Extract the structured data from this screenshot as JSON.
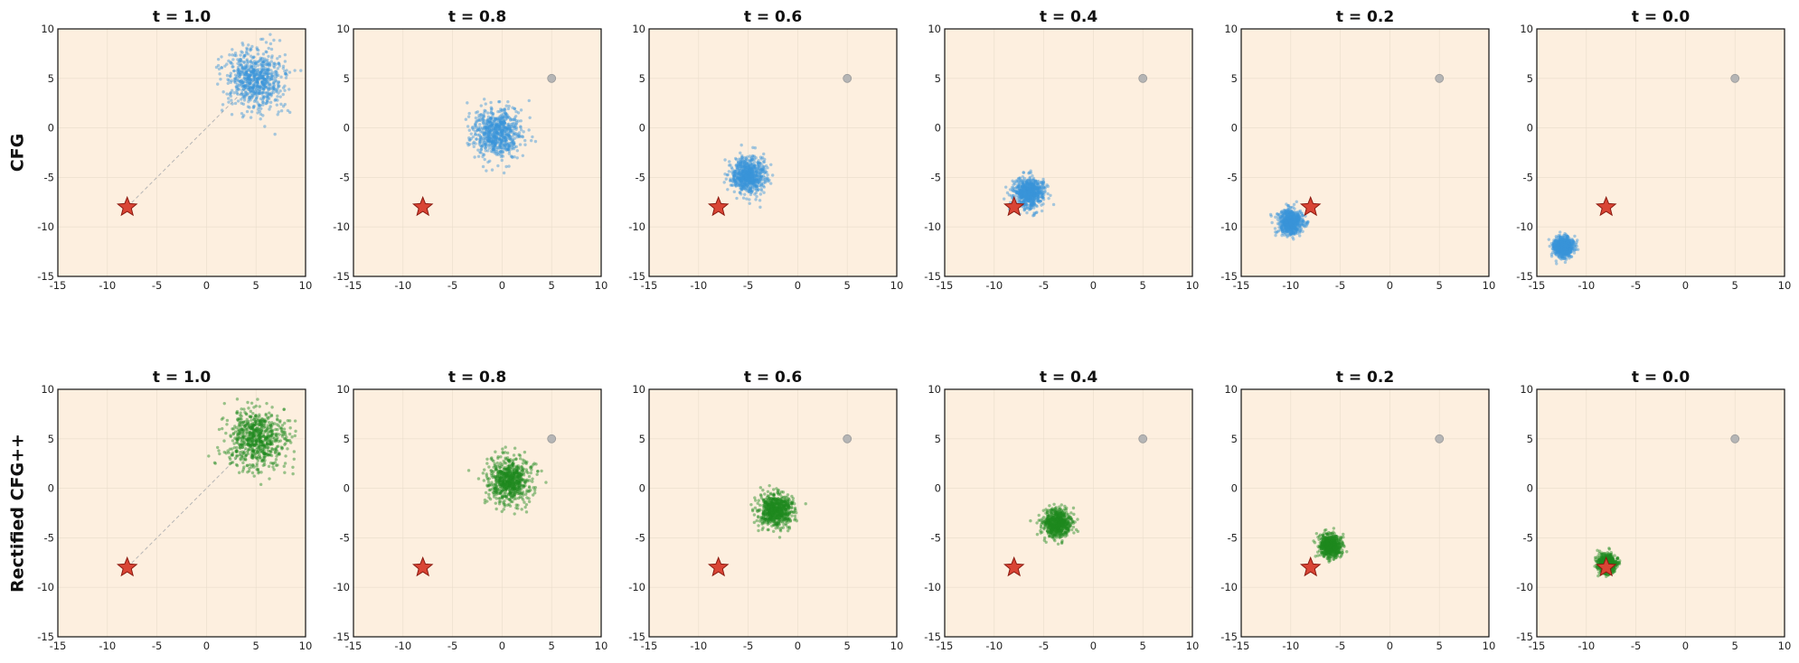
{
  "figure": {
    "row_labels": [
      "CFG",
      "Rectified CFG++"
    ],
    "panel_titles": [
      "t = 1.0",
      "t = 0.8",
      "t = 0.6",
      "t = 0.4",
      "t = 0.2",
      "t = 0.0"
    ]
  },
  "colors": {
    "panel_background": "#fdefdf",
    "cfg_points": "#3a94d9",
    "rectified_points": "#1f8a1f",
    "target_star": "#d94535",
    "star_edge": "#8b1a10",
    "source_marker": "#b5b5b5",
    "trajectory_line": "#b5b5b5"
  },
  "chart_data": {
    "type": "scatter",
    "xlim": [
      -15,
      10
    ],
    "ylim": [
      -15,
      10
    ],
    "xticks": [
      -15,
      -10,
      -5,
      0,
      5,
      10
    ],
    "yticks": [
      -15,
      -10,
      -5,
      0,
      5,
      10
    ],
    "grid": true,
    "legend": "none",
    "target": {
      "x": -8,
      "y": -8,
      "marker": "star"
    },
    "source": {
      "x": 5,
      "y": 5,
      "marker": "circle"
    },
    "rows": [
      {
        "label": "CFG",
        "series_color_key": "cfg_points",
        "panels": [
          {
            "title": "t = 1.0",
            "cluster_center": [
              5,
              5
            ],
            "cluster_spread": 1.5,
            "show_trajectory_line": true,
            "show_source_marker": false
          },
          {
            "title": "t = 0.8",
            "cluster_center": [
              -0.5,
              -0.5
            ],
            "cluster_spread": 1.2,
            "show_trajectory_line": false,
            "show_source_marker": true
          },
          {
            "title": "t = 0.6",
            "cluster_center": [
              -5,
              -4.8
            ],
            "cluster_spread": 0.9,
            "show_trajectory_line": false,
            "show_source_marker": true
          },
          {
            "title": "t = 0.4",
            "cluster_center": [
              -6.5,
              -6.5
            ],
            "cluster_spread": 0.75,
            "show_trajectory_line": false,
            "show_source_marker": true
          },
          {
            "title": "t = 0.2",
            "cluster_center": [
              -10,
              -9.5
            ],
            "cluster_spread": 0.6,
            "show_trajectory_line": false,
            "show_source_marker": true
          },
          {
            "title": "t = 0.0",
            "cluster_center": [
              -12.3,
              -12
            ],
            "cluster_spread": 0.5,
            "show_trajectory_line": false,
            "show_source_marker": true
          }
        ]
      },
      {
        "label": "Rectified CFG++",
        "series_color_key": "rectified_points",
        "panels": [
          {
            "title": "t = 1.0",
            "cluster_center": [
              5,
              5
            ],
            "cluster_spread": 1.5,
            "show_trajectory_line": true,
            "show_source_marker": false
          },
          {
            "title": "t = 0.8",
            "cluster_center": [
              0.8,
              0.8
            ],
            "cluster_spread": 1.1,
            "show_trajectory_line": false,
            "show_source_marker": true
          },
          {
            "title": "t = 0.6",
            "cluster_center": [
              -2.2,
              -2.2
            ],
            "cluster_spread": 0.85,
            "show_trajectory_line": false,
            "show_source_marker": true
          },
          {
            "title": "t = 0.4",
            "cluster_center": [
              -3.6,
              -3.6
            ],
            "cluster_spread": 0.7,
            "show_trajectory_line": false,
            "show_source_marker": true
          },
          {
            "title": "t = 0.2",
            "cluster_center": [
              -6,
              -5.8
            ],
            "cluster_spread": 0.55,
            "show_trajectory_line": false,
            "show_source_marker": true
          },
          {
            "title": "t = 0.0",
            "cluster_center": [
              -7.9,
              -7.6
            ],
            "cluster_spread": 0.45,
            "show_trajectory_line": false,
            "show_source_marker": true
          }
        ]
      }
    ]
  }
}
